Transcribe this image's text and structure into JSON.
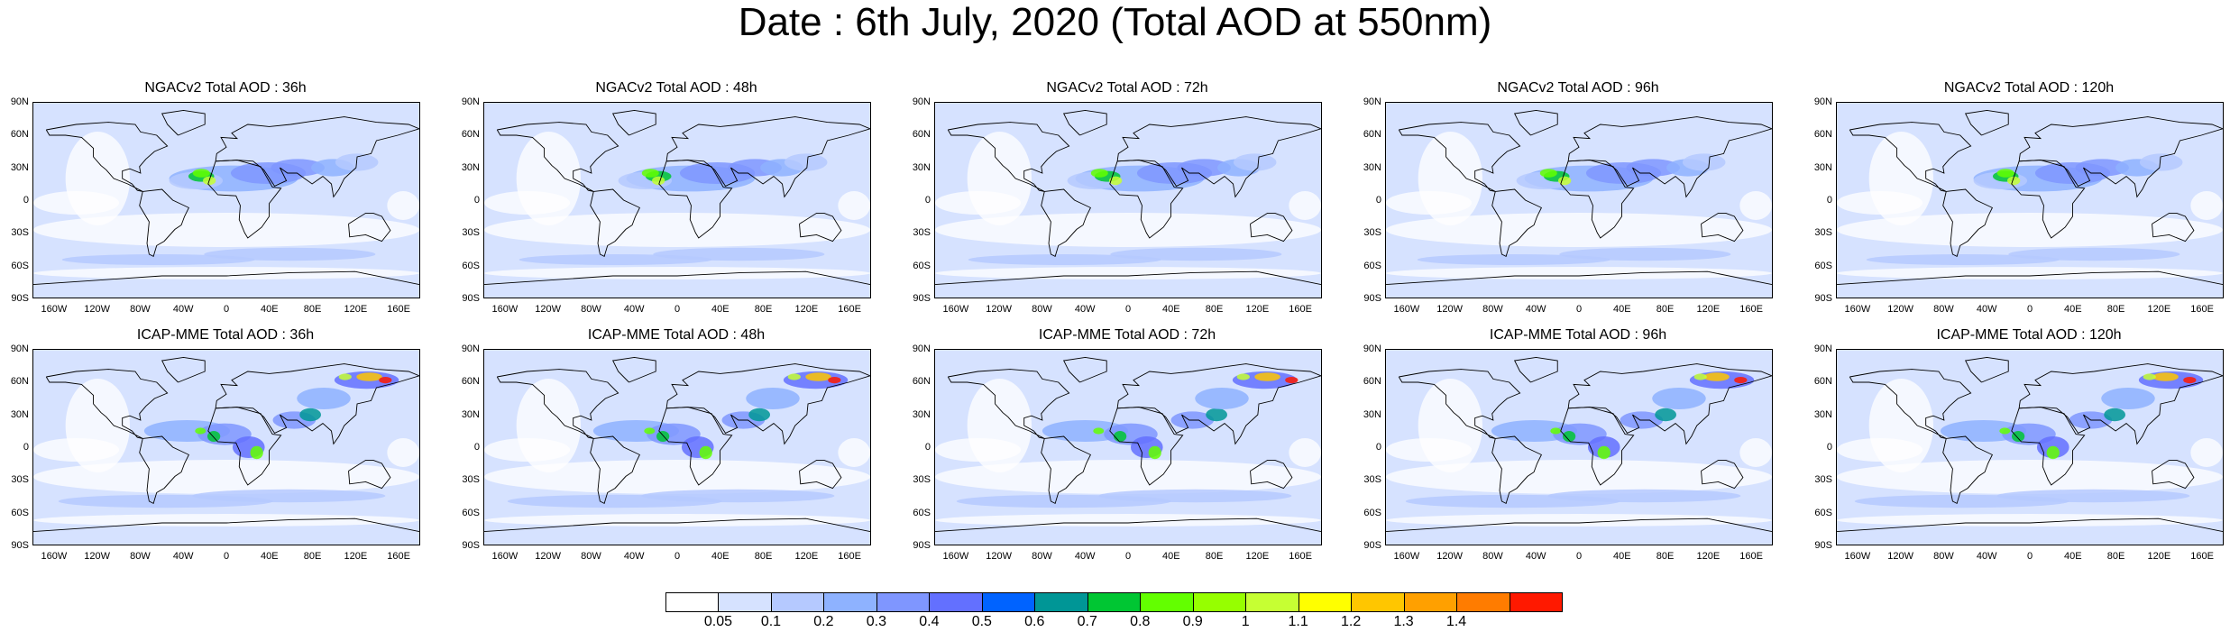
{
  "title": "Date : 6th July, 2020 (Total AOD at 550nm)",
  "panels": [
    {
      "title": "NGACv2 Total AOD : 36h",
      "model": "NGACv2",
      "hour": 36
    },
    {
      "title": "NGACv2 Total AOD : 48h",
      "model": "NGACv2",
      "hour": 48
    },
    {
      "title": "NGACv2 Total AOD : 72h",
      "model": "NGACv2",
      "hour": 72
    },
    {
      "title": "NGACv2 Total AOD : 96h",
      "model": "NGACv2",
      "hour": 96
    },
    {
      "title": "NGACv2 Total AOD : 120h",
      "model": "NGACv2",
      "hour": 120
    },
    {
      "title": "ICAP-MME Total AOD : 36h",
      "model": "ICAP-MME",
      "hour": 36
    },
    {
      "title": "ICAP-MME Total AOD : 48h",
      "model": "ICAP-MME",
      "hour": 48
    },
    {
      "title": "ICAP-MME Total AOD : 72h",
      "model": "ICAP-MME",
      "hour": 72
    },
    {
      "title": "ICAP-MME Total AOD : 96h",
      "model": "ICAP-MME",
      "hour": 96
    },
    {
      "title": "ICAP-MME Total AOD : 120h",
      "model": "ICAP-MME",
      "hour": 120
    }
  ],
  "lat_ticks": [
    "90N",
    "60N",
    "30N",
    "0",
    "30S",
    "60S",
    "90S"
  ],
  "lon_ticks": [
    "160W",
    "120W",
    "80W",
    "40W",
    "0",
    "40E",
    "80E",
    "120E",
    "160E"
  ],
  "colorbar": {
    "labels": [
      "0.05",
      "0.1",
      "0.2",
      "0.3",
      "0.4",
      "0.5",
      "0.6",
      "0.7",
      "0.8",
      "0.9",
      "1",
      "1.1",
      "1.2",
      "1.3",
      "1.4"
    ],
    "colors": [
      "#ffffff",
      "#d6e2ff",
      "#b5c9ff",
      "#8eb2ff",
      "#7f96ff",
      "#6370ff",
      "#0063ff",
      "#009696",
      "#00c633",
      "#63ff00",
      "#96ff00",
      "#c6ff33",
      "#ffff00",
      "#ffc600",
      "#ffa000",
      "#ff7c00",
      "#ff1900"
    ]
  },
  "map_colors": {
    "ocean_low": "#d6e2ff",
    "ocean_mid": "#b5c9ff",
    "coast": "#000000"
  }
}
